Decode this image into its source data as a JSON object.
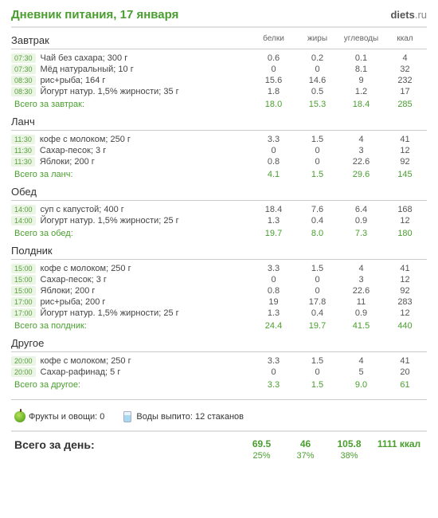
{
  "title": "Дневник питания, 17 января",
  "logo": "diets.ru",
  "columns": [
    "белки",
    "жиры",
    "углеводы",
    "ккал"
  ],
  "meals": [
    {
      "name": "Завтрак",
      "items": [
        {
          "time": "07:30",
          "food": "Чай без сахара; 300 г",
          "v": [
            "0.6",
            "0.2",
            "0.1",
            "4"
          ]
        },
        {
          "time": "07:30",
          "food": "Мёд натуральный; 10 г",
          "v": [
            "0",
            "0",
            "8.1",
            "32"
          ]
        },
        {
          "time": "08:30",
          "food": "рис+рыба; 164 г",
          "v": [
            "15.6",
            "14.6",
            "9",
            "232"
          ]
        },
        {
          "time": "08:30",
          "food": "Йогурт натур. 1,5% жирности; 35 г",
          "v": [
            "1.8",
            "0.5",
            "1.2",
            "17"
          ]
        }
      ],
      "total_label": "Всего за завтрак:",
      "total": [
        "18.0",
        "15.3",
        "18.4",
        "285"
      ]
    },
    {
      "name": "Ланч",
      "items": [
        {
          "time": "11:30",
          "food": "кофе с молоком; 250 г",
          "v": [
            "3.3",
            "1.5",
            "4",
            "41"
          ]
        },
        {
          "time": "11:30",
          "food": "Сахар-песок; 3 г",
          "v": [
            "0",
            "0",
            "3",
            "12"
          ]
        },
        {
          "time": "11:30",
          "food": "Яблоки; 200 г",
          "v": [
            "0.8",
            "0",
            "22.6",
            "92"
          ]
        }
      ],
      "total_label": "Всего за ланч:",
      "total": [
        "4.1",
        "1.5",
        "29.6",
        "145"
      ]
    },
    {
      "name": "Обед",
      "items": [
        {
          "time": "14:00",
          "food": "суп с капустой; 400 г",
          "v": [
            "18.4",
            "7.6",
            "6.4",
            "168"
          ]
        },
        {
          "time": "14:00",
          "food": "Йогурт натур. 1,5% жирности; 25 г",
          "v": [
            "1.3",
            "0.4",
            "0.9",
            "12"
          ]
        }
      ],
      "total_label": "Всего за обед:",
      "total": [
        "19.7",
        "8.0",
        "7.3",
        "180"
      ]
    },
    {
      "name": "Полдник",
      "items": [
        {
          "time": "15:00",
          "food": "кофе с молоком; 250 г",
          "v": [
            "3.3",
            "1.5",
            "4",
            "41"
          ]
        },
        {
          "time": "15:00",
          "food": "Сахар-песок; 3 г",
          "v": [
            "0",
            "0",
            "3",
            "12"
          ]
        },
        {
          "time": "15:00",
          "food": "Яблоки; 200 г",
          "v": [
            "0.8",
            "0",
            "22.6",
            "92"
          ]
        },
        {
          "time": "17:00",
          "food": "рис+рыба; 200 г",
          "v": [
            "19",
            "17.8",
            "11",
            "283"
          ]
        },
        {
          "time": "17:00",
          "food": "Йогурт натур. 1,5% жирности; 25 г",
          "v": [
            "1.3",
            "0.4",
            "0.9",
            "12"
          ]
        }
      ],
      "total_label": "Всего за полдник:",
      "total": [
        "24.4",
        "19.7",
        "41.5",
        "440"
      ]
    },
    {
      "name": "Другое",
      "items": [
        {
          "time": "20:00",
          "food": "кофе с молоком; 250 г",
          "v": [
            "3.3",
            "1.5",
            "4",
            "41"
          ]
        },
        {
          "time": "20:00",
          "food": "Сахар-рафинад; 5 г",
          "v": [
            "0",
            "0",
            "5",
            "20"
          ]
        }
      ],
      "total_label": "Всего за другое:",
      "total": [
        "3.3",
        "1.5",
        "9.0",
        "61"
      ]
    }
  ],
  "fruits_label": "Фрукты и овощи: 0",
  "water_label": "Воды выпито: 12 стаканов",
  "day_total_label": "Всего за день:",
  "day_total": [
    "69.5",
    "46",
    "105.8",
    "1111 ккал"
  ],
  "day_pct": [
    "25%",
    "37%",
    "38%",
    ""
  ]
}
